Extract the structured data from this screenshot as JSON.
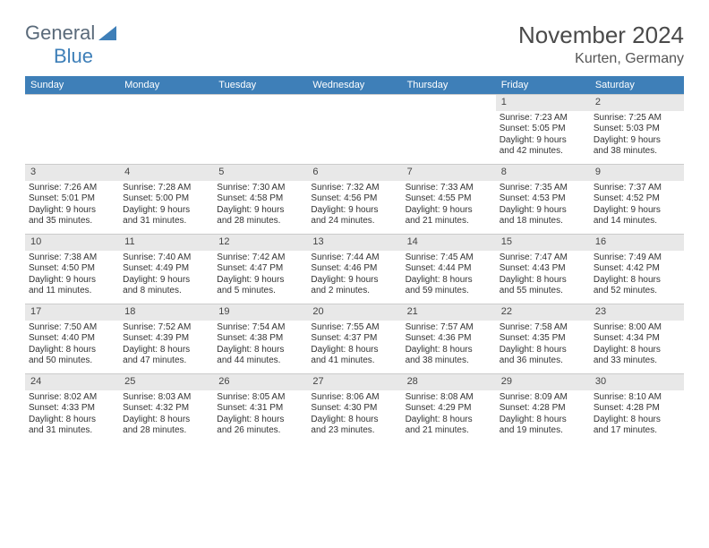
{
  "logo": {
    "text_a": "General",
    "text_b": "Blue"
  },
  "title": "November 2024",
  "location": "Kurten, Germany",
  "weekdays": [
    "Sunday",
    "Monday",
    "Tuesday",
    "Wednesday",
    "Thursday",
    "Friday",
    "Saturday"
  ],
  "colors": {
    "header_bg": "#3e7fb8",
    "header_text": "#ffffff",
    "daynum_bg": "#e8e8e8",
    "border": "#cccccc",
    "body_text": "#333333"
  },
  "weeks": [
    [
      {
        "empty": true
      },
      {
        "empty": true
      },
      {
        "empty": true
      },
      {
        "empty": true
      },
      {
        "empty": true
      },
      {
        "num": "1",
        "sunrise": "Sunrise: 7:23 AM",
        "sunset": "Sunset: 5:05 PM",
        "day1": "Daylight: 9 hours",
        "day2": "and 42 minutes."
      },
      {
        "num": "2",
        "sunrise": "Sunrise: 7:25 AM",
        "sunset": "Sunset: 5:03 PM",
        "day1": "Daylight: 9 hours",
        "day2": "and 38 minutes."
      }
    ],
    [
      {
        "num": "3",
        "sunrise": "Sunrise: 7:26 AM",
        "sunset": "Sunset: 5:01 PM",
        "day1": "Daylight: 9 hours",
        "day2": "and 35 minutes."
      },
      {
        "num": "4",
        "sunrise": "Sunrise: 7:28 AM",
        "sunset": "Sunset: 5:00 PM",
        "day1": "Daylight: 9 hours",
        "day2": "and 31 minutes."
      },
      {
        "num": "5",
        "sunrise": "Sunrise: 7:30 AM",
        "sunset": "Sunset: 4:58 PM",
        "day1": "Daylight: 9 hours",
        "day2": "and 28 minutes."
      },
      {
        "num": "6",
        "sunrise": "Sunrise: 7:32 AM",
        "sunset": "Sunset: 4:56 PM",
        "day1": "Daylight: 9 hours",
        "day2": "and 24 minutes."
      },
      {
        "num": "7",
        "sunrise": "Sunrise: 7:33 AM",
        "sunset": "Sunset: 4:55 PM",
        "day1": "Daylight: 9 hours",
        "day2": "and 21 minutes."
      },
      {
        "num": "8",
        "sunrise": "Sunrise: 7:35 AM",
        "sunset": "Sunset: 4:53 PM",
        "day1": "Daylight: 9 hours",
        "day2": "and 18 minutes."
      },
      {
        "num": "9",
        "sunrise": "Sunrise: 7:37 AM",
        "sunset": "Sunset: 4:52 PM",
        "day1": "Daylight: 9 hours",
        "day2": "and 14 minutes."
      }
    ],
    [
      {
        "num": "10",
        "sunrise": "Sunrise: 7:38 AM",
        "sunset": "Sunset: 4:50 PM",
        "day1": "Daylight: 9 hours",
        "day2": "and 11 minutes."
      },
      {
        "num": "11",
        "sunrise": "Sunrise: 7:40 AM",
        "sunset": "Sunset: 4:49 PM",
        "day1": "Daylight: 9 hours",
        "day2": "and 8 minutes."
      },
      {
        "num": "12",
        "sunrise": "Sunrise: 7:42 AM",
        "sunset": "Sunset: 4:47 PM",
        "day1": "Daylight: 9 hours",
        "day2": "and 5 minutes."
      },
      {
        "num": "13",
        "sunrise": "Sunrise: 7:44 AM",
        "sunset": "Sunset: 4:46 PM",
        "day1": "Daylight: 9 hours",
        "day2": "and 2 minutes."
      },
      {
        "num": "14",
        "sunrise": "Sunrise: 7:45 AM",
        "sunset": "Sunset: 4:44 PM",
        "day1": "Daylight: 8 hours",
        "day2": "and 59 minutes."
      },
      {
        "num": "15",
        "sunrise": "Sunrise: 7:47 AM",
        "sunset": "Sunset: 4:43 PM",
        "day1": "Daylight: 8 hours",
        "day2": "and 55 minutes."
      },
      {
        "num": "16",
        "sunrise": "Sunrise: 7:49 AM",
        "sunset": "Sunset: 4:42 PM",
        "day1": "Daylight: 8 hours",
        "day2": "and 52 minutes."
      }
    ],
    [
      {
        "num": "17",
        "sunrise": "Sunrise: 7:50 AM",
        "sunset": "Sunset: 4:40 PM",
        "day1": "Daylight: 8 hours",
        "day2": "and 50 minutes."
      },
      {
        "num": "18",
        "sunrise": "Sunrise: 7:52 AM",
        "sunset": "Sunset: 4:39 PM",
        "day1": "Daylight: 8 hours",
        "day2": "and 47 minutes."
      },
      {
        "num": "19",
        "sunrise": "Sunrise: 7:54 AM",
        "sunset": "Sunset: 4:38 PM",
        "day1": "Daylight: 8 hours",
        "day2": "and 44 minutes."
      },
      {
        "num": "20",
        "sunrise": "Sunrise: 7:55 AM",
        "sunset": "Sunset: 4:37 PM",
        "day1": "Daylight: 8 hours",
        "day2": "and 41 minutes."
      },
      {
        "num": "21",
        "sunrise": "Sunrise: 7:57 AM",
        "sunset": "Sunset: 4:36 PM",
        "day1": "Daylight: 8 hours",
        "day2": "and 38 minutes."
      },
      {
        "num": "22",
        "sunrise": "Sunrise: 7:58 AM",
        "sunset": "Sunset: 4:35 PM",
        "day1": "Daylight: 8 hours",
        "day2": "and 36 minutes."
      },
      {
        "num": "23",
        "sunrise": "Sunrise: 8:00 AM",
        "sunset": "Sunset: 4:34 PM",
        "day1": "Daylight: 8 hours",
        "day2": "and 33 minutes."
      }
    ],
    [
      {
        "num": "24",
        "sunrise": "Sunrise: 8:02 AM",
        "sunset": "Sunset: 4:33 PM",
        "day1": "Daylight: 8 hours",
        "day2": "and 31 minutes."
      },
      {
        "num": "25",
        "sunrise": "Sunrise: 8:03 AM",
        "sunset": "Sunset: 4:32 PM",
        "day1": "Daylight: 8 hours",
        "day2": "and 28 minutes."
      },
      {
        "num": "26",
        "sunrise": "Sunrise: 8:05 AM",
        "sunset": "Sunset: 4:31 PM",
        "day1": "Daylight: 8 hours",
        "day2": "and 26 minutes."
      },
      {
        "num": "27",
        "sunrise": "Sunrise: 8:06 AM",
        "sunset": "Sunset: 4:30 PM",
        "day1": "Daylight: 8 hours",
        "day2": "and 23 minutes."
      },
      {
        "num": "28",
        "sunrise": "Sunrise: 8:08 AM",
        "sunset": "Sunset: 4:29 PM",
        "day1": "Daylight: 8 hours",
        "day2": "and 21 minutes."
      },
      {
        "num": "29",
        "sunrise": "Sunrise: 8:09 AM",
        "sunset": "Sunset: 4:28 PM",
        "day1": "Daylight: 8 hours",
        "day2": "and 19 minutes."
      },
      {
        "num": "30",
        "sunrise": "Sunrise: 8:10 AM",
        "sunset": "Sunset: 4:28 PM",
        "day1": "Daylight: 8 hours",
        "day2": "and 17 minutes."
      }
    ]
  ]
}
